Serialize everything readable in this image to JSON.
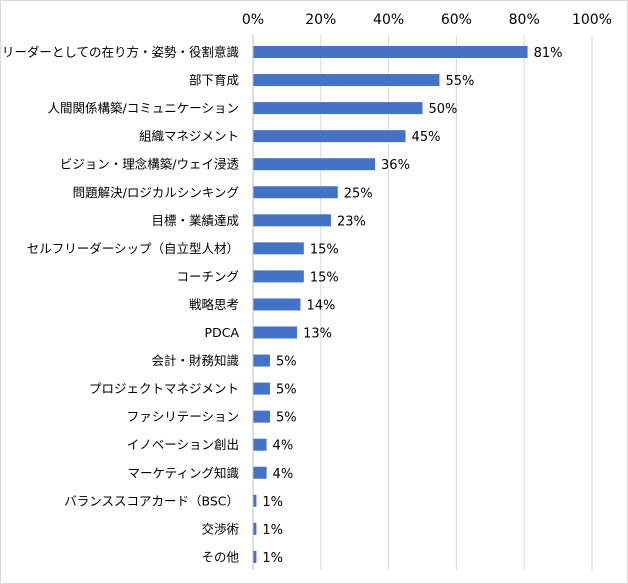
{
  "chart_data": {
    "type": "bar",
    "orientation": "horizontal",
    "categories": [
      "リーダーとしての在り方・姿勢・役割意識",
      "部下育成",
      "人間関係構築/コミュニケーション",
      "組織マネジメント",
      "ビジョン・理念構築/ウェイ浸透",
      "問題解決/ロジカルシンキング",
      "目標・業績達成",
      "セルフリーダーシップ（自立型人材）",
      "コーチング",
      "戦略思考",
      "PDCA",
      "会計・財務知識",
      "プロジェクトマネジメント",
      "ファシリテーション",
      "イノベーション創出",
      "マーケティング知識",
      "バランススコアカード（BSC）",
      "交渉術",
      "その他"
    ],
    "values": [
      81,
      55,
      50,
      45,
      36,
      25,
      23,
      15,
      15,
      14,
      13,
      5,
      5,
      5,
      4,
      4,
      1,
      1,
      1
    ],
    "value_labels": [
      "81%",
      "55%",
      "50%",
      "45%",
      "36%",
      "25%",
      "23%",
      "15%",
      "15%",
      "14%",
      "13%",
      "5%",
      "5%",
      "5%",
      "4%",
      "4%",
      "1%",
      "1%",
      "1%"
    ],
    "xlim": [
      0,
      100
    ],
    "x_ticks": [
      "0%",
      "20%",
      "40%",
      "60%",
      "80%",
      "100%"
    ],
    "x_tick_values": [
      0,
      20,
      40,
      60,
      80,
      100
    ],
    "x_axis_position": "top",
    "grid": true,
    "bar_color": "#4472c4",
    "grid_color": "#d9d9d9"
  }
}
